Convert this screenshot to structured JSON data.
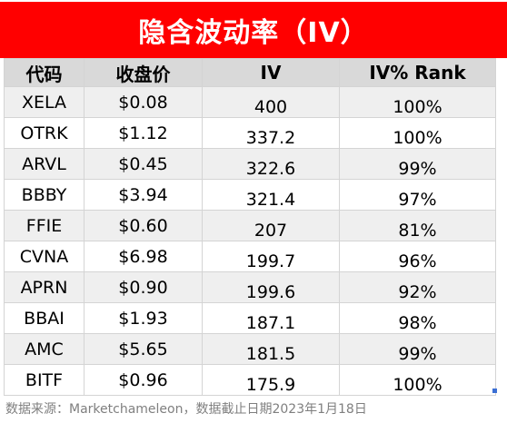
{
  "title": "隐含波动率（IV）",
  "columns": [
    "代码",
    "收盘价",
    "IV",
    "IV% Rank"
  ],
  "rows": [
    {
      "ticker": "XELA",
      "price": "$0.08",
      "iv": "400",
      "rank": "100%"
    },
    {
      "ticker": "OTRK",
      "price": "$1.12",
      "iv": "337.2",
      "rank": "100%"
    },
    {
      "ticker": "ARVL",
      "price": "$0.45",
      "iv": "322.6",
      "rank": "99%"
    },
    {
      "ticker": "BBBY",
      "price": "$3.94",
      "iv": "321.4",
      "rank": "97%"
    },
    {
      "ticker": "FFIE",
      "price": "$0.60",
      "iv": "207",
      "rank": "81%"
    },
    {
      "ticker": "CVNA",
      "price": "$6.98",
      "iv": "199.7",
      "rank": "96%"
    },
    {
      "ticker": "APRN",
      "price": "$0.90",
      "iv": "199.6",
      "rank": "92%"
    },
    {
      "ticker": "BBAI",
      "price": "$1.93",
      "iv": "187.1",
      "rank": "98%"
    },
    {
      "ticker": "AMC",
      "price": "$5.65",
      "iv": "181.5",
      "rank": "99%"
    },
    {
      "ticker": "BITF",
      "price": "$0.96",
      "iv": "175.9",
      "rank": "100%"
    }
  ],
  "source": "数据来源：Marketchameleon，数据截止日期2023年1月18日",
  "colors": {
    "title_bg": "#ff0000",
    "title_text": "#ffffff",
    "header_bg": "#d9d9d9",
    "stripe_bg": "#efefef"
  }
}
